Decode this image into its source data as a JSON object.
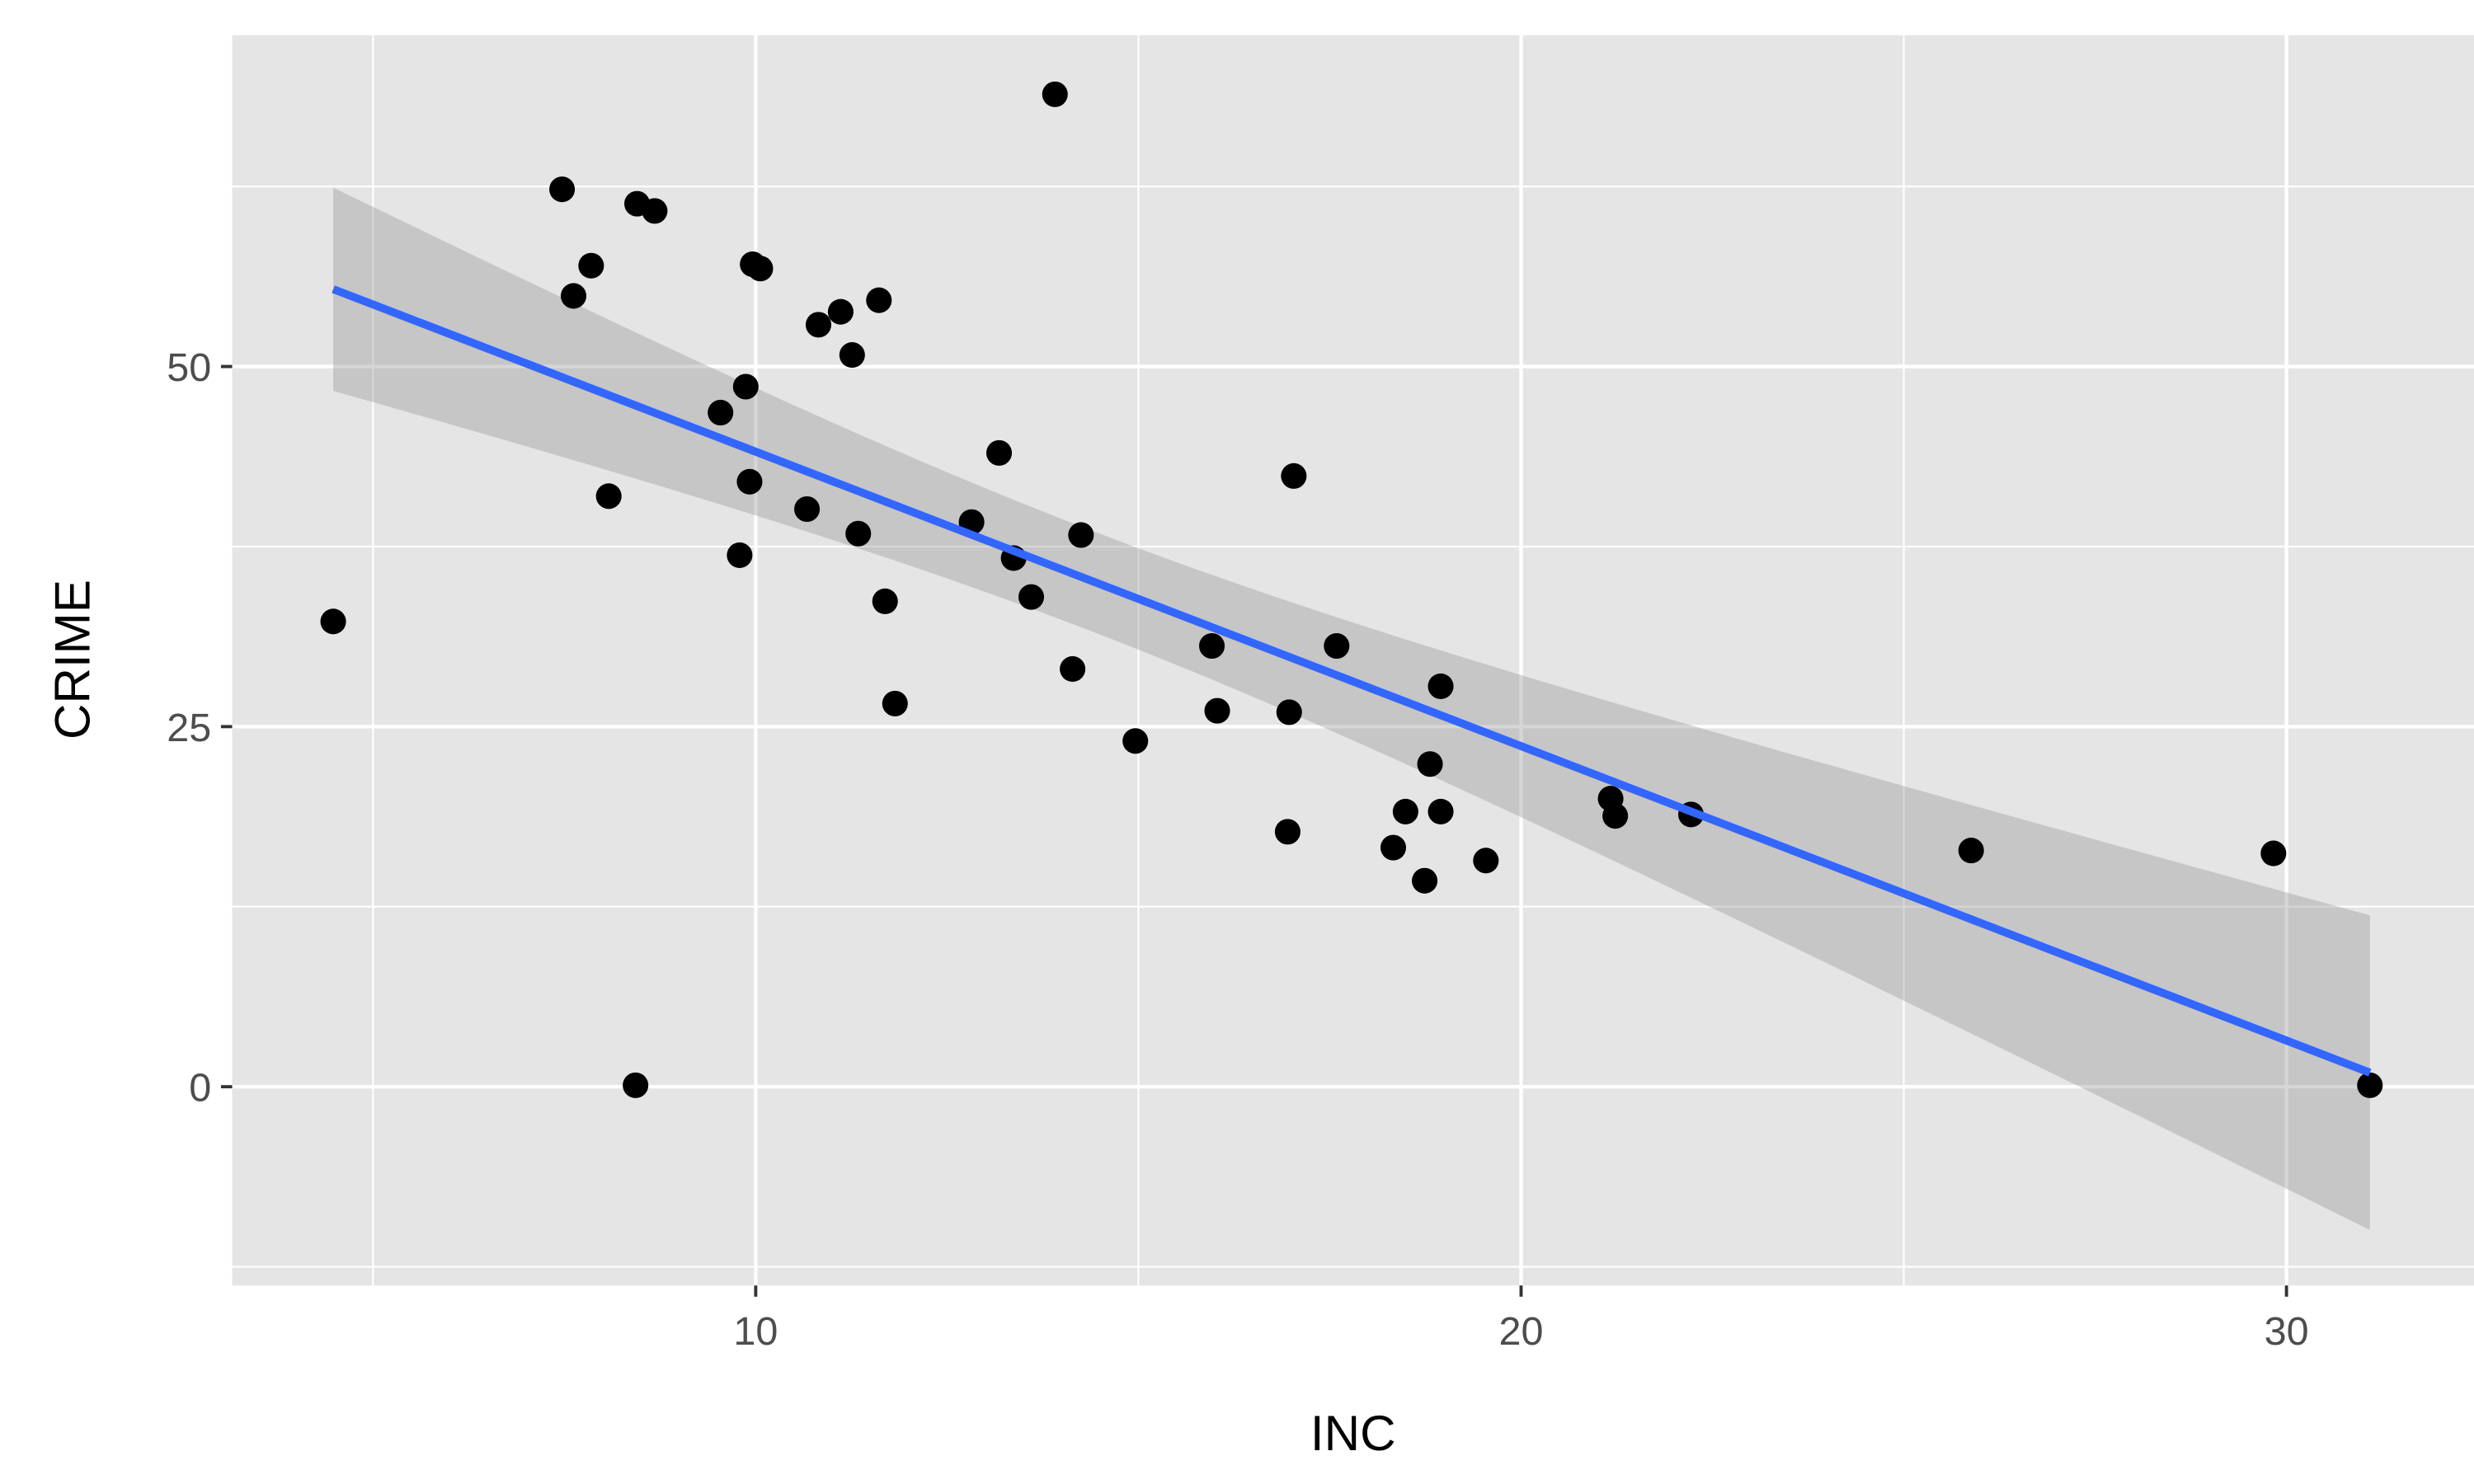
{
  "chart_data": {
    "type": "scatter",
    "title": "",
    "xlabel": "INC",
    "ylabel": "CRIME",
    "xlim": [
      3.16,
      32.45
    ],
    "ylim": [
      -13.8,
      73.0
    ],
    "x_ticks": [
      10,
      20,
      30
    ],
    "y_ticks": [
      0,
      25,
      50
    ],
    "x_tick_labels": [
      "10",
      "20",
      "30"
    ],
    "y_tick_labels": [
      "0",
      "25",
      "50"
    ],
    "grid": true,
    "smooth": {
      "method": "lm",
      "se": true,
      "line_color": "#3366FF",
      "band_color": "#999999"
    },
    "point_color": "#000000",
    "panel_background": "#E5E5E5",
    "points": [
      [
        4.48,
        32.3
      ],
      [
        7.47,
        62.3
      ],
      [
        7.62,
        54.9
      ],
      [
        7.85,
        57.0
      ],
      [
        8.08,
        41.0
      ],
      [
        8.43,
        0.1
      ],
      [
        8.45,
        61.3
      ],
      [
        8.68,
        60.8
      ],
      [
        9.54,
        46.8
      ],
      [
        9.79,
        36.9
      ],
      [
        9.87,
        48.6
      ],
      [
        9.92,
        42.0
      ],
      [
        9.96,
        57.1
      ],
      [
        10.06,
        56.8
      ],
      [
        10.67,
        40.1
      ],
      [
        10.82,
        52.9
      ],
      [
        11.11,
        53.8
      ],
      [
        11.26,
        50.8
      ],
      [
        11.34,
        38.4
      ],
      [
        11.61,
        54.6
      ],
      [
        11.69,
        33.7
      ],
      [
        11.82,
        26.6
      ],
      [
        12.82,
        39.2
      ],
      [
        13.18,
        44.0
      ],
      [
        13.37,
        36.7
      ],
      [
        13.6,
        34.0
      ],
      [
        13.91,
        68.9
      ],
      [
        14.14,
        29.0
      ],
      [
        14.25,
        38.3
      ],
      [
        14.96,
        24.0
      ],
      [
        15.96,
        30.6
      ],
      [
        16.03,
        26.1
      ],
      [
        16.95,
        17.7
      ],
      [
        16.97,
        26.0
      ],
      [
        17.03,
        42.4
      ],
      [
        17.59,
        30.6
      ],
      [
        18.33,
        16.6
      ],
      [
        18.49,
        19.1
      ],
      [
        18.74,
        14.3
      ],
      [
        18.81,
        22.4
      ],
      [
        18.95,
        19.1
      ],
      [
        18.95,
        27.8
      ],
      [
        19.54,
        15.7
      ],
      [
        21.17,
        20.0
      ],
      [
        21.23,
        18.8
      ],
      [
        22.22,
        18.9
      ],
      [
        25.88,
        16.4
      ],
      [
        29.83,
        16.2
      ],
      [
        31.09,
        0.1
      ]
    ]
  }
}
